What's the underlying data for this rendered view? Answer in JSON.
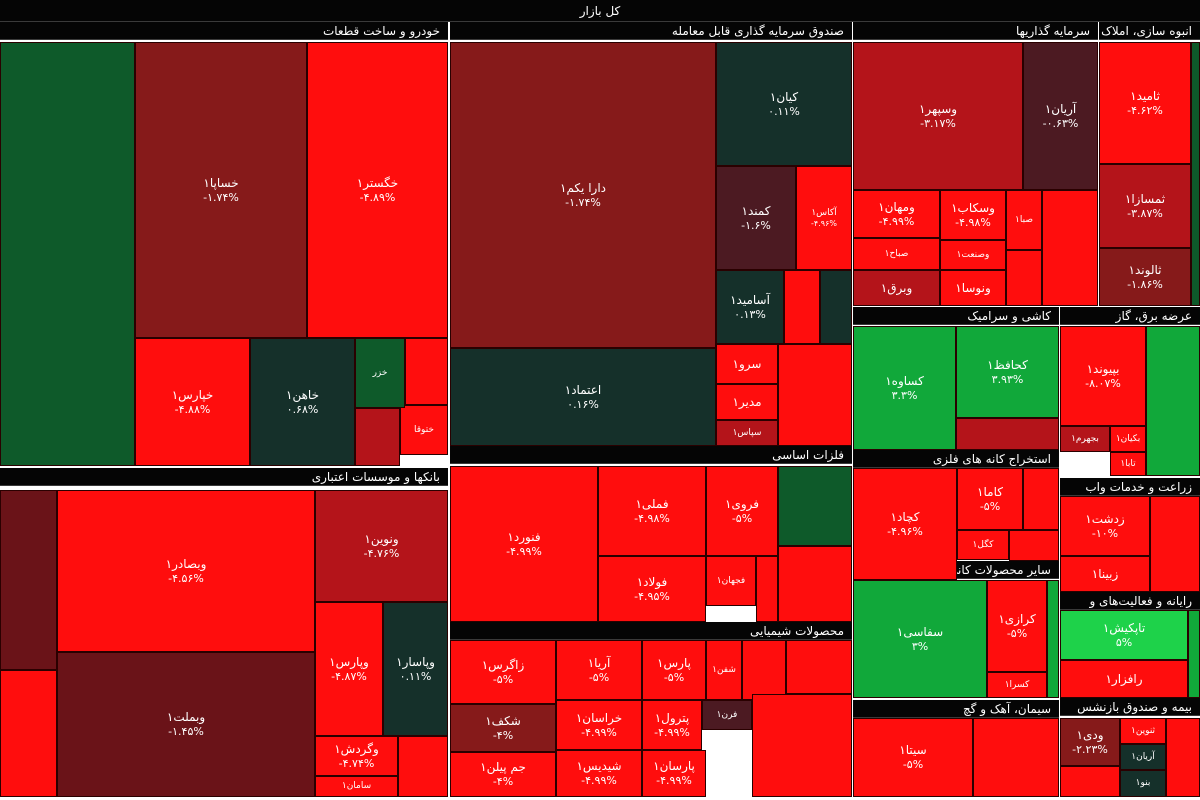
{
  "market_title": "کل بازار",
  "colors": {
    "deep_red": "#ff0d0d",
    "red": "#f20c0c",
    "maroon": "#861a1a",
    "dark_maroon": "#6a1318",
    "crimson": "#b4141a",
    "dark_teal": "#15302a",
    "dark_green": "#0e5a2a",
    "green": "#11a83a",
    "light_green": "#1ed24a",
    "plum": "#4c1a22"
  },
  "chart_data": {
    "type": "heatmap",
    "sectors": [
      {
        "name": "خودرو و ساخت قطعات",
        "stocks": [
          {
            "name": "خساپا۱",
            "change": "-۱.۷۴%"
          },
          {
            "name": "خگستر۱",
            "change": "-۴.۸۹%"
          },
          {
            "name": "خپارس۱",
            "change": "-۴.۸۸%"
          },
          {
            "name": "خاهن۱",
            "change": "۰.۶۸%"
          },
          {
            "name": "ختوقا",
            "change": ""
          },
          {
            "name": "خزر",
            "change": ""
          }
        ]
      },
      {
        "name": "صندوق سرمایه گذاری قابل معامله",
        "stocks": [
          {
            "name": "دارا یکم۱",
            "change": "-۱.۷۴%"
          },
          {
            "name": "اعتماد۱",
            "change": "۰.۱۶%"
          },
          {
            "name": "کیان۱",
            "change": "۰.۱۱%"
          },
          {
            "name": "کمند۱",
            "change": "-۱.۶%"
          },
          {
            "name": "آکاس۱",
            "change": "-۴.۹۶%"
          },
          {
            "name": "آسامید۱",
            "change": "۰.۱۳%"
          },
          {
            "name": "سرو۱",
            "change": ""
          },
          {
            "name": "مدیر۱",
            "change": ""
          },
          {
            "name": "سپاس۱",
            "change": ""
          }
        ]
      },
      {
        "name": "سرمایه گذاریها",
        "stocks": [
          {
            "name": "وسپهر۱",
            "change": "-۳.۱۷%"
          },
          {
            "name": "آریان۱",
            "change": "-۰.۶۳%"
          },
          {
            "name": "وسکاب۱",
            "change": "-۴.۹۸%"
          },
          {
            "name": "ومهان۱",
            "change": "-۴.۹۹%"
          },
          {
            "name": "صباح۱",
            "change": ""
          },
          {
            "name": "وصنعت۱",
            "change": ""
          },
          {
            "name": "وبرق۱",
            "change": ""
          },
          {
            "name": "ونوسا۱",
            "change": ""
          },
          {
            "name": "صبا۱",
            "change": ""
          }
        ]
      },
      {
        "name": "انبوه سازی، املاک و",
        "stocks": [
          {
            "name": "ثامید۱",
            "change": "-۴.۶۲%"
          },
          {
            "name": "ثمسازا۱",
            "change": "-۳.۸۷%"
          },
          {
            "name": "ثالوند۱",
            "change": "-۱.۸۶%"
          }
        ]
      },
      {
        "name": "بانکها و موسسات اعتباری",
        "stocks": [
          {
            "name": "وبصادر۱",
            "change": "-۴.۵۶%"
          },
          {
            "name": "ونوین۱",
            "change": "-۴.۷۶%"
          },
          {
            "name": "وبملت۱",
            "change": "-۱.۴۵%"
          },
          {
            "name": "وپارس۱",
            "change": "-۴.۸۷%"
          },
          {
            "name": "وپاسار۱",
            "change": "۰.۱۱%"
          },
          {
            "name": "وگردش۱",
            "change": "-۴.۷۴%"
          },
          {
            "name": "سامان۱",
            "change": ""
          }
        ]
      },
      {
        "name": "فلزات اساسی",
        "stocks": [
          {
            "name": "فنورد۱",
            "change": "-۴.۹۹%"
          },
          {
            "name": "فملی۱",
            "change": "-۴.۹۸%"
          },
          {
            "name": "فروی۱",
            "change": "-۵%"
          },
          {
            "name": "فولاد۱",
            "change": "-۴.۹۵%"
          },
          {
            "name": "فجهان۱",
            "change": ""
          }
        ]
      },
      {
        "name": "محصولات شیمیایی",
        "stocks": [
          {
            "name": "زاگرس۱",
            "change": "-۵%"
          },
          {
            "name": "آریا۱",
            "change": "-۵%"
          },
          {
            "name": "پارس۱",
            "change": "-۵%"
          },
          {
            "name": "شفن۱",
            "change": ""
          },
          {
            "name": "شکف۱",
            "change": "-۴%"
          },
          {
            "name": "خراسان۱",
            "change": "-۴.۹۹%"
          },
          {
            "name": "پترول۱",
            "change": "-۴.۹۹%"
          },
          {
            "name": "فرن۱",
            "change": ""
          },
          {
            "name": "جم پیلن۱",
            "change": "-۴%"
          },
          {
            "name": "شیدیس۱",
            "change": "-۴.۹۹%"
          },
          {
            "name": "پارسان۱",
            "change": "-۴.۹۹%"
          }
        ]
      },
      {
        "name": "کاشی و سرامیک",
        "stocks": [
          {
            "name": "کساوه۱",
            "change": "۳.۳%"
          },
          {
            "name": "کحافظ۱",
            "change": "۳.۹۳%"
          }
        ]
      },
      {
        "name": "عرضه برق، گاز",
        "stocks": [
          {
            "name": "بپیوند۱",
            "change": "-۸.۰۷%"
          },
          {
            "name": "بجهرم۱",
            "change": ""
          },
          {
            "name": "بکیان۱",
            "change": ""
          },
          {
            "name": "تابا۱",
            "change": ""
          }
        ]
      },
      {
        "name": "استخراج کانه های فلزی",
        "stocks": [
          {
            "name": "کچاد۱",
            "change": "-۴.۹۶%"
          },
          {
            "name": "کاما۱",
            "change": "-۵%"
          },
          {
            "name": "کگل۱",
            "change": ""
          }
        ]
      },
      {
        "name": "زراعت و خدمات واب",
        "stocks": [
          {
            "name": "زدشت۱",
            "change": "-۱۰%"
          },
          {
            "name": "زبینا۱",
            "change": ""
          }
        ]
      },
      {
        "name": "سایر محصولات کانی غیرفلزی",
        "stocks": [
          {
            "name": "سفاسی۱",
            "change": "۳%"
          },
          {
            "name": "کرازی۱",
            "change": "-۵%"
          },
          {
            "name": "کسرا۱",
            "change": ""
          }
        ]
      },
      {
        "name": "رایانه و فعالیت‌های و",
        "stocks": [
          {
            "name": "تاپکیش۱",
            "change": "۵%"
          },
          {
            "name": "رافزار۱",
            "change": ""
          }
        ]
      },
      {
        "name": "سیمان، آهک و گچ",
        "stocks": [
          {
            "name": "سیتا۱",
            "change": "-۵%"
          }
        ]
      },
      {
        "name": "بیمه و صندوق بازنشس",
        "stocks": [
          {
            "name": "ودی۱",
            "change": "-۲.۲۳%"
          },
          {
            "name": "ثنوین۱",
            "change": ""
          },
          {
            "name": "آریان۱",
            "change": ""
          },
          {
            "name": "بنو۱",
            "change": ""
          }
        ]
      }
    ]
  }
}
